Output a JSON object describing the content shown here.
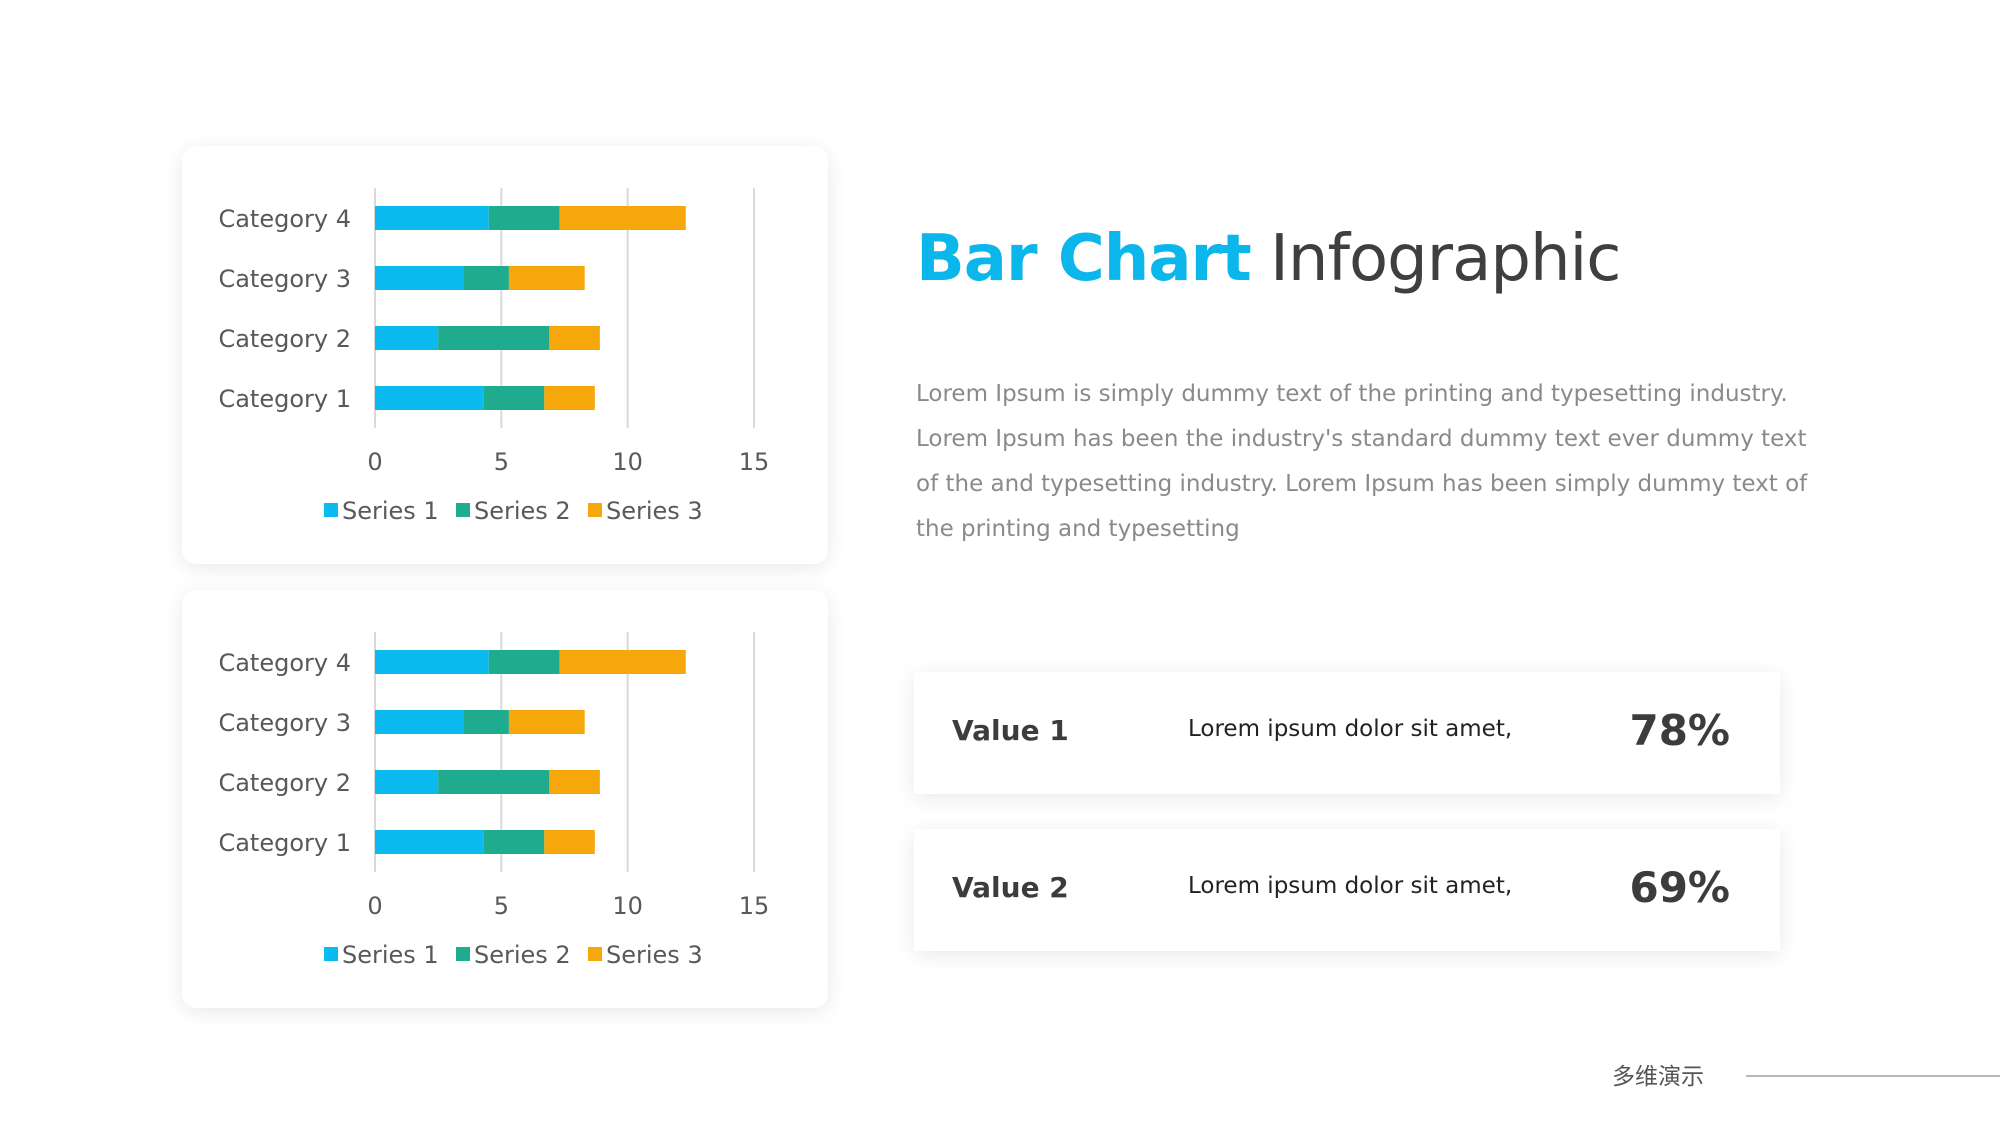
{
  "chart_data": [
    {
      "type": "bar",
      "orientation": "horizontal",
      "stacked": true,
      "categories": [
        "Category 1",
        "Category 2",
        "Category 3",
        "Category 4"
      ],
      "series": [
        {
          "name": "Series 1",
          "color": "#0bbaef",
          "values": [
            4.3,
            2.5,
            3.5,
            4.5
          ]
        },
        {
          "name": "Series 2",
          "color": "#1eab8e",
          "values": [
            2.4,
            4.4,
            1.8,
            2.8
          ]
        },
        {
          "name": "Series 3",
          "color": "#f6a70b",
          "values": [
            2.0,
            2.0,
            3.0,
            5.0
          ]
        }
      ],
      "xlim": [
        0,
        15
      ],
      "xticks": [
        "0",
        "5",
        "10",
        "15"
      ],
      "grid": true,
      "legend": "bottom"
    },
    {
      "type": "bar",
      "orientation": "horizontal",
      "stacked": true,
      "categories": [
        "Category 1",
        "Category 2",
        "Category 3",
        "Category 4"
      ],
      "series": [
        {
          "name": "Series 1",
          "color": "#0bbaef",
          "values": [
            4.3,
            2.5,
            3.5,
            4.5
          ]
        },
        {
          "name": "Series 2",
          "color": "#1eab8e",
          "values": [
            2.4,
            4.4,
            1.8,
            2.8
          ]
        },
        {
          "name": "Series 3",
          "color": "#f6a70b",
          "values": [
            2.0,
            2.0,
            3.0,
            5.0
          ]
        }
      ],
      "xlim": [
        0,
        15
      ],
      "xticks": [
        "0",
        "5",
        "10",
        "15"
      ],
      "grid": true,
      "legend": "bottom"
    }
  ],
  "heading": {
    "accent": "Bar Chart",
    "rest": "Infographic",
    "accent_color": "#0bb6ea"
  },
  "body_text": "Lorem Ipsum is simply dummy text of the printing and typesetting industry. Lorem Ipsum has been the industry's standard dummy text ever dummy text of the and typesetting industry. Lorem Ipsum has been simply dummy text of the printing and typesetting",
  "values": [
    {
      "label": "Value 1",
      "text": "Lorem ipsum dolor sit amet,",
      "percent": "78%"
    },
    {
      "label": "Value 2",
      "text": "Lorem ipsum dolor sit amet,",
      "percent": "69%"
    }
  ],
  "footer": {
    "brand": "多维演示"
  }
}
